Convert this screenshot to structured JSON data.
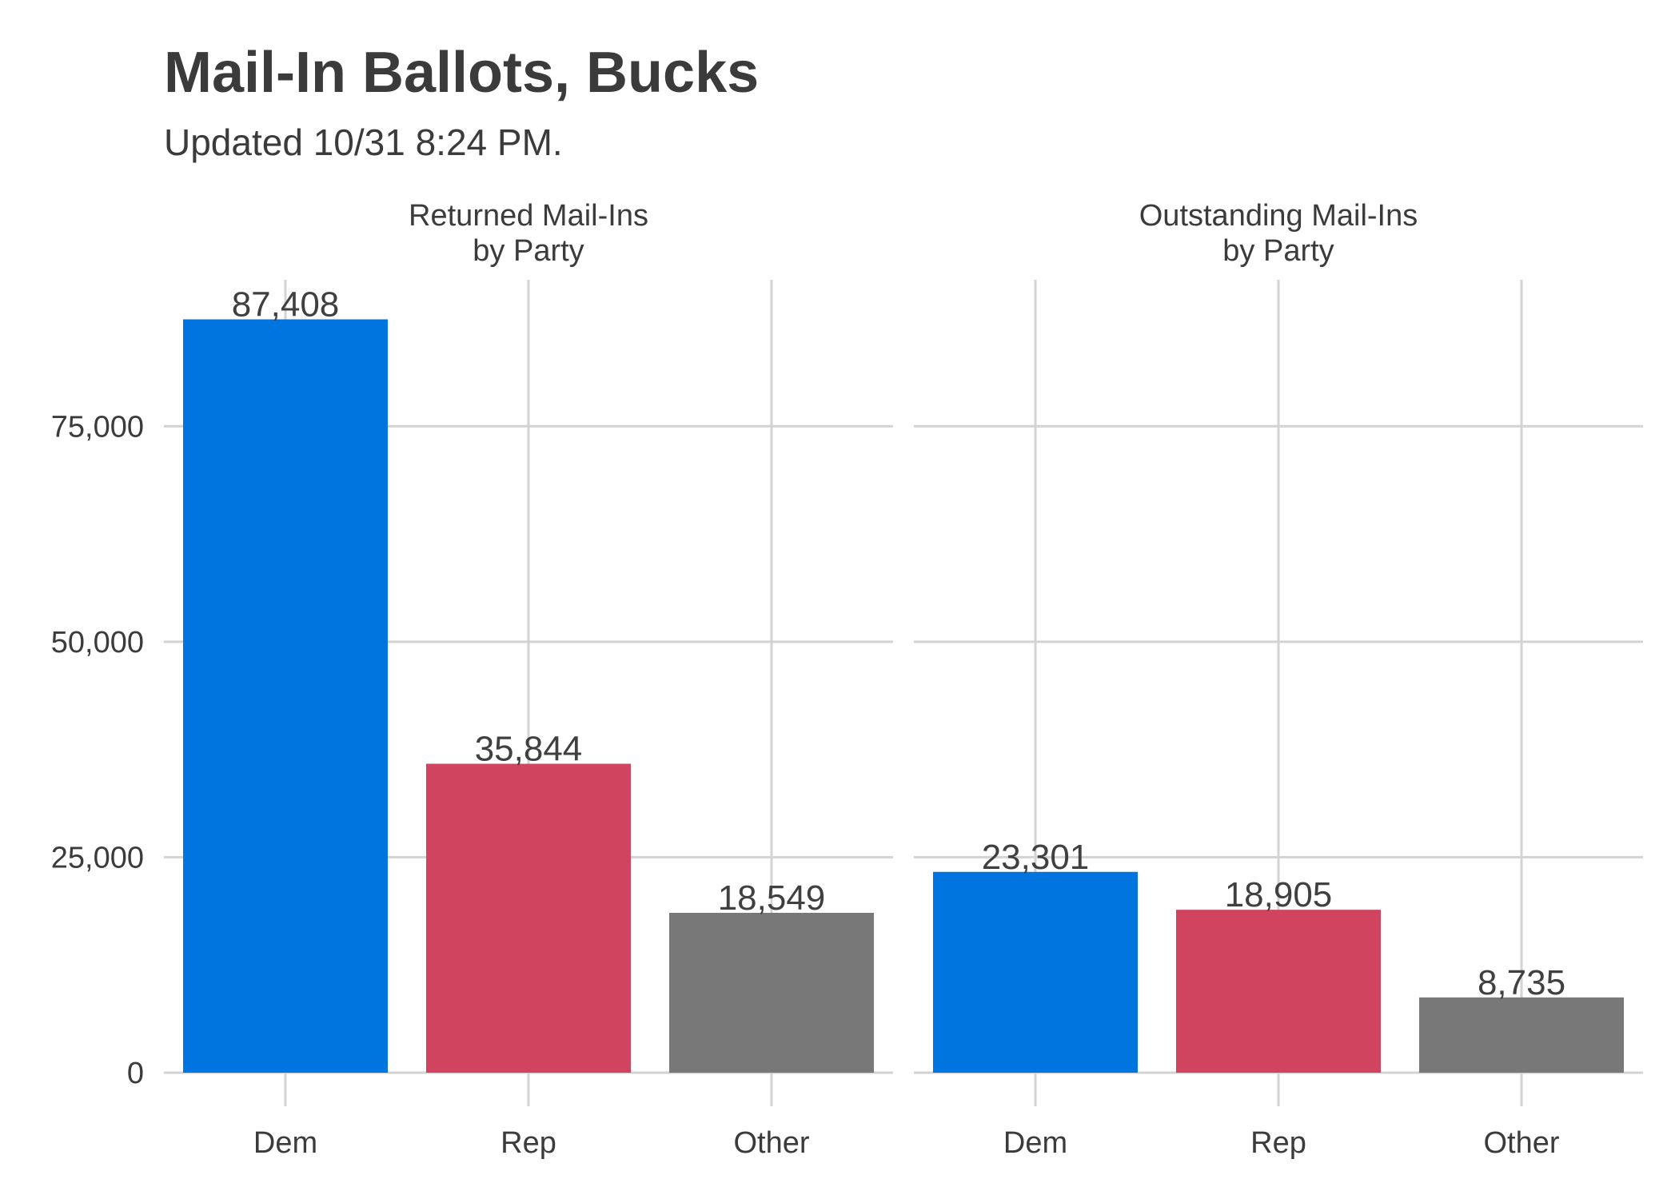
{
  "chart_data": {
    "type": "bar",
    "title": "Mail-In Ballots, Bucks",
    "subtitle": "Updated 10/31 8:24 PM.",
    "categories": [
      "Dem",
      "Rep",
      "Other"
    ],
    "colors": [
      "#0075e0",
      "#d0445f",
      "#787878"
    ],
    "ylim": [
      0,
      92000
    ],
    "yticks": [
      0,
      25000,
      50000,
      75000
    ],
    "ytick_labels": [
      "0",
      "25,000",
      "50,000",
      "75,000"
    ],
    "grid": true,
    "facets": [
      {
        "label_line1": "Returned Mail-Ins",
        "label_line2": "by Party",
        "values": [
          87408,
          35844,
          18549
        ],
        "value_labels": [
          "87,408",
          "35,844",
          "18,549"
        ]
      },
      {
        "label_line1": "Outstanding Mail-Ins",
        "label_line2": "by Party",
        "values": [
          23301,
          18905,
          8735
        ],
        "value_labels": [
          "23,301",
          "18,905",
          "8,735"
        ]
      }
    ]
  }
}
